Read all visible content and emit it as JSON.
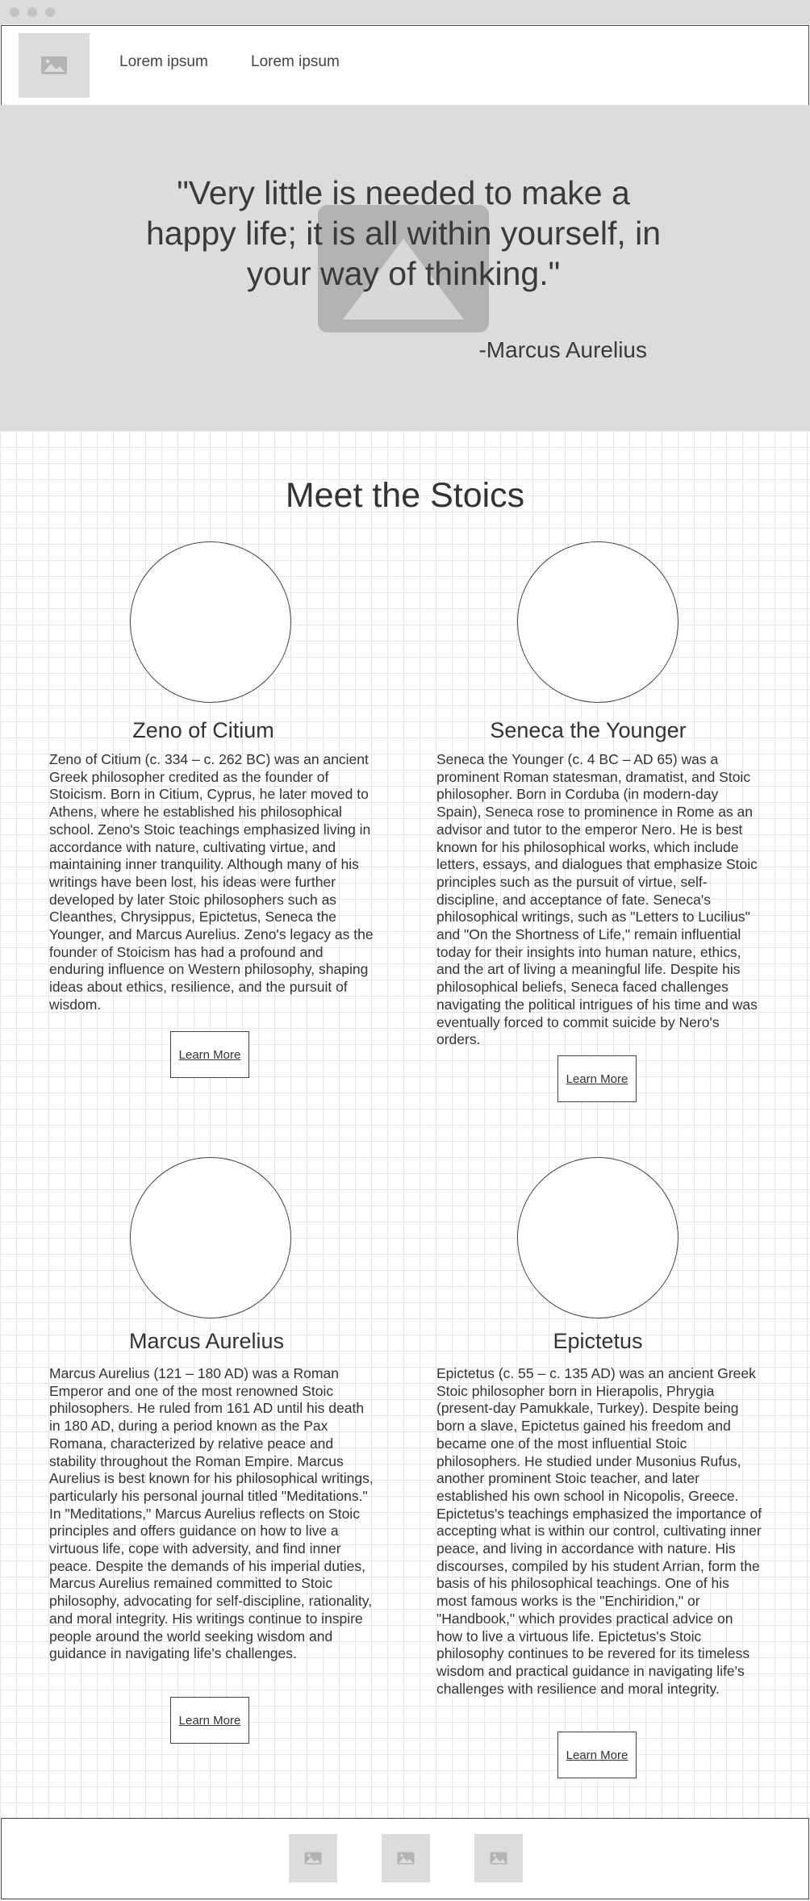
{
  "nav": {
    "links": [
      "Lorem ipsum",
      "Lorem ipsum"
    ]
  },
  "hero": {
    "quote": "\"Very little is needed to make a happy life; it is all within yourself, in your way of thinking.\"",
    "author": "-Marcus Aurelius"
  },
  "section": {
    "title": "Meet the Stoics"
  },
  "philosophers": [
    {
      "name": "Zeno of Citium",
      "bio": "Zeno of Citium (c. 334 – c. 262 BC) was an ancient Greek philosopher credited as the founder of Stoicism. Born in Citium, Cyprus, he later moved to Athens, where he established his philosophical school. Zeno's Stoic teachings emphasized living in accordance with nature, cultivating virtue, and maintaining inner tranquility. Although many of his writings have been lost, his ideas were further developed by later Stoic philosophers such as Cleanthes, Chrysippus, Epictetus, Seneca the Younger, and Marcus Aurelius. Zeno's legacy as the founder of Stoicism has had a profound and enduring influence on Western philosophy, shaping ideas about ethics, resilience, and the pursuit of wisdom.",
      "button": "Learn More"
    },
    {
      "name": "Seneca the Younger",
      "bio": "Seneca the Younger (c. 4 BC – AD 65) was a prominent Roman statesman, dramatist, and Stoic philosopher. Born in Corduba (in modern-day Spain), Seneca rose to prominence in Rome as an advisor and tutor to the emperor Nero. He is best known for his philosophical works, which include letters, essays, and dialogues that emphasize Stoic principles such as the pursuit of virtue, self-discipline, and acceptance of fate. Seneca's philosophical writings, such as \"Letters to Lucilius\" and \"On the Shortness of Life,\" remain influential today for their insights into human nature, ethics, and the art of living a meaningful life. Despite his philosophical beliefs, Seneca faced challenges navigating the political intrigues of his time and was eventually forced to commit suicide by Nero's orders.",
      "button": "Learn More"
    },
    {
      "name": "Marcus Aurelius",
      "bio": "Marcus Aurelius (121 – 180 AD) was a Roman Emperor and one of the most renowned Stoic philosophers. He ruled from 161 AD until his death in 180 AD, during a period known as the Pax Romana, characterized by relative peace and stability throughout the Roman Empire. Marcus Aurelius is best known for his philosophical writings, particularly his personal journal titled \"Meditations.\" In \"Meditations,\" Marcus Aurelius reflects on Stoic principles and offers guidance on how to live a virtuous life, cope with adversity, and find inner peace. Despite the demands of his imperial duties, Marcus Aurelius remained committed to Stoic philosophy, advocating for self-discipline, rationality, and moral integrity. His writings continue to inspire people around the world seeking wisdom and guidance in navigating life's challenges.",
      "button": "Learn More"
    },
    {
      "name": "Epictetus",
      "bio": "Epictetus (c. 55 – c. 135 AD) was an ancient Greek Stoic philosopher born in Hierapolis, Phrygia (present-day Pamukkale, Turkey). Despite being born a slave, Epictetus gained his freedom and became one of the most influential Stoic philosophers. He studied under Musonius Rufus, another prominent Stoic teacher, and later established his own school in Nicopolis, Greece. Epictetus's teachings emphasized the importance of accepting what is within our control, cultivating inner peace, and living in accordance with nature. His discourses, compiled by his student Arrian, form the basis of his philosophical teachings. One of his most famous works is the \"Enchiridion,\" or \"Handbook,\" which provides practical advice on how to live a virtuous life. Epictetus's Stoic philosophy continues to be revered for its timeless wisdom and practical guidance in navigating life's challenges with resilience and moral integrity.",
      "button": "Learn More"
    }
  ],
  "icons": {
    "logo": "image-placeholder-icon",
    "hero": "image-placeholder-icon",
    "footer": [
      "image-placeholder-icon",
      "image-placeholder-icon",
      "image-placeholder-icon"
    ]
  },
  "colors": {
    "chrome": "#dcdcdc",
    "placeholder": "#dcdcdc",
    "hero_image": "#b3b3b3",
    "text": "#333333",
    "border": "#444444"
  }
}
